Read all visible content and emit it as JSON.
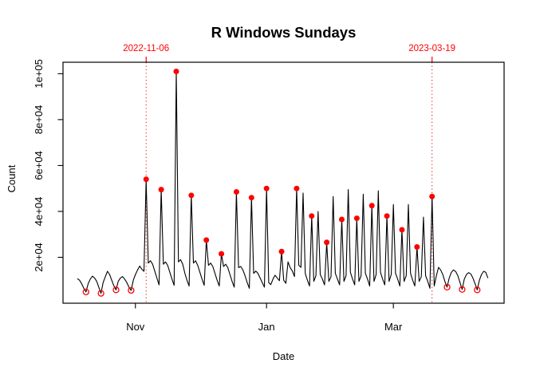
{
  "title": "R Windows Sundays",
  "chart_data": {
    "type": "line",
    "title": "R Windows Sundays",
    "xlabel": "Date",
    "ylabel": "Count",
    "series_name": "daily count",
    "start_date": "2022-10-05",
    "end_date": "2023-04-14",
    "frequency": "daily",
    "line_color": "#000000",
    "marker_color": "#ff0000",
    "grid": "off",
    "y_range": [
      0,
      105000
    ],
    "y_ticks": [
      {
        "label": "2e+04",
        "value": 20000
      },
      {
        "label": "4e+04",
        "value": 40000
      },
      {
        "label": "6e+04",
        "value": 60000
      },
      {
        "label": "8e+04",
        "value": 80000
      },
      {
        "label": "1e+05",
        "value": 100000
      }
    ],
    "x_ticks": [
      {
        "label": "Nov",
        "day_index": 27
      },
      {
        "label": "Jan",
        "day_index": 88
      },
      {
        "label": "Mar",
        "day_index": 147
      }
    ],
    "vlines": [
      {
        "label": "2022-11-06",
        "day_index": 32,
        "color": "#ff0000",
        "style": "dotted"
      },
      {
        "label": "2023-03-19",
        "day_index": 165,
        "color": "#ff0000",
        "style": "dotted"
      }
    ],
    "values": [
      10700,
      10000,
      8500,
      6500,
      4900,
      8500,
      10500,
      11800,
      11000,
      9500,
      6800,
      4300,
      9000,
      11500,
      13900,
      12500,
      10000,
      7500,
      5800,
      9500,
      11000,
      11600,
      10500,
      9000,
      7000,
      5600,
      10000,
      12500,
      14500,
      16200,
      14800,
      13900,
      54000,
      17500,
      18500,
      17000,
      14000,
      11000,
      8000,
      49500,
      17000,
      18000,
      16500,
      13500,
      10500,
      7800,
      101000,
      18000,
      19000,
      17000,
      13000,
      10000,
      7500,
      47000,
      17500,
      18500,
      16500,
      13500,
      10500,
      7800,
      27500,
      16500,
      17500,
      16000,
      13000,
      10000,
      7500,
      21500,
      16000,
      17000,
      15500,
      12500,
      9500,
      7000,
      48500,
      15500,
      16000,
      14500,
      12000,
      9000,
      6500,
      46000,
      13000,
      14000,
      13000,
      11000,
      9000,
      7000,
      50000,
      9000,
      8100,
      10500,
      12200,
      11000,
      9800,
      22500,
      10000,
      8700,
      18000,
      15500,
      14000,
      11600,
      50000,
      16500,
      15600,
      48000,
      13000,
      10000,
      7500,
      38000,
      9500,
      12000,
      40000,
      12500,
      10500,
      8000,
      26500,
      9500,
      11500,
      46500,
      13000,
      10500,
      8000,
      36500,
      9500,
      12000,
      49500,
      13500,
      10500,
      8000,
      37000,
      9500,
      12000,
      47500,
      13000,
      10500,
      7500,
      42500,
      9500,
      12500,
      49000,
      13500,
      10500,
      8000,
      38000,
      9500,
      12500,
      43000,
      13000,
      10500,
      7500,
      32000,
      9500,
      12000,
      43000,
      13000,
      10000,
      7500,
      24500,
      9500,
      11500,
      37500,
      12000,
      9500,
      6500,
      46500,
      7500,
      12000,
      15600,
      14500,
      12500,
      9500,
      7000,
      11000,
      13500,
      14500,
      13800,
      12000,
      9000,
      6000,
      10500,
      12500,
      13300,
      12800,
      11000,
      8500,
      5800,
      10000,
      12500,
      13900,
      13500,
      11000
    ],
    "markers": {
      "filled_sundays": {
        "style": "filled-red-dot",
        "dates": [
          "2022-11-06",
          "2022-11-13",
          "2022-11-20",
          "2022-11-27",
          "2022-12-04",
          "2022-12-11",
          "2022-12-18",
          "2022-12-25",
          "2023-01-01",
          "2023-01-08",
          "2023-01-15",
          "2023-01-22",
          "2023-01-29",
          "2023-02-05",
          "2023-02-12",
          "2023-02-19",
          "2023-02-26",
          "2023-03-05",
          "2023-03-12",
          "2023-03-19"
        ],
        "day_indices": [
          32,
          39,
          46,
          53,
          60,
          67,
          74,
          81,
          88,
          95,
          102,
          109,
          116,
          123,
          130,
          137,
          144,
          151,
          158,
          165
        ]
      },
      "open_sundays": {
        "style": "open-red-circle",
        "dates": [
          "2022-10-09",
          "2022-10-16",
          "2022-10-23",
          "2022-10-30",
          "2023-03-26",
          "2023-04-02",
          "2023-04-09"
        ],
        "day_indices": [
          4,
          11,
          18,
          25,
          172,
          179,
          186
        ]
      }
    }
  }
}
